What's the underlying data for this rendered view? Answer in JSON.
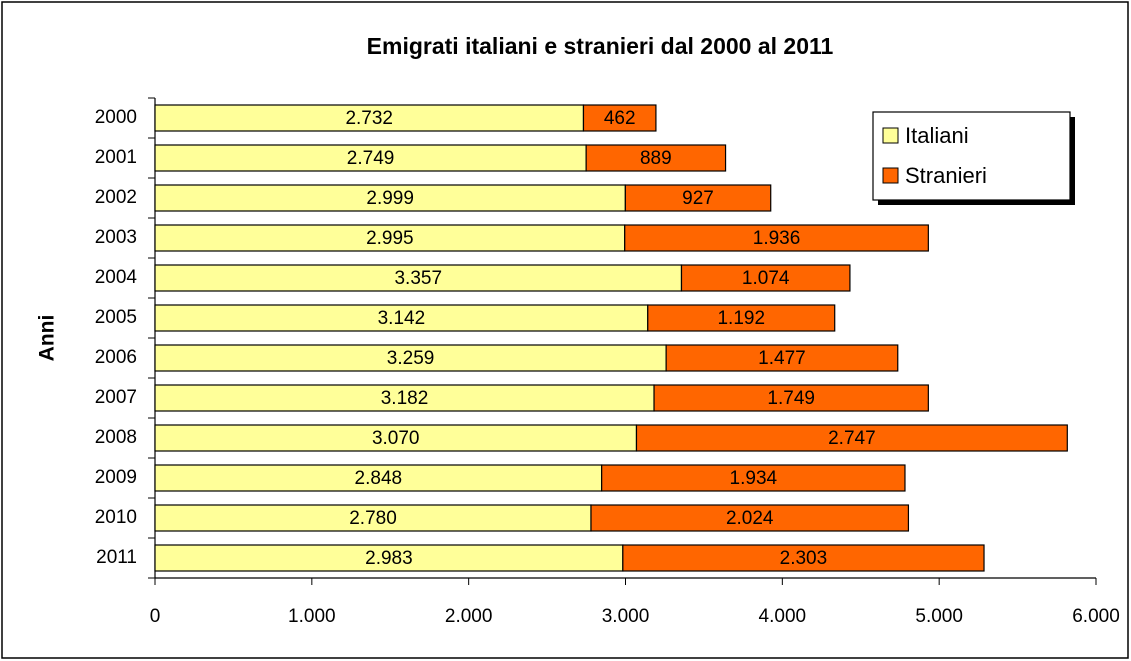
{
  "chart_data": {
    "type": "bar",
    "orientation": "horizontal",
    "stacked": true,
    "title": "Emigrati italiani e stranieri dal 2000 al 2011",
    "y_label": "Anni",
    "categories": [
      "2000",
      "2001",
      "2002",
      "2003",
      "2004",
      "2005",
      "2006",
      "2007",
      "2008",
      "2009",
      "2010",
      "2011"
    ],
    "series": [
      {
        "name": "Italiani",
        "color": "#ffff99",
        "values": [
          2732,
          2749,
          2999,
          2995,
          3357,
          3142,
          3259,
          3182,
          3070,
          2848,
          2780,
          2983
        ],
        "value_labels": [
          "2.732",
          "2.749",
          "2.999",
          "2.995",
          "3.357",
          "3.142",
          "3.259",
          "3.182",
          "3.070",
          "2.848",
          "2.780",
          "2.983"
        ]
      },
      {
        "name": "Stranieri",
        "color": "#ff6600",
        "values": [
          462,
          889,
          927,
          1936,
          1074,
          1192,
          1477,
          1749,
          2747,
          1934,
          2024,
          2303
        ],
        "value_labels": [
          "462",
          "889",
          "927",
          "1.936",
          "1.074",
          "1.192",
          "1.477",
          "1.749",
          "2.747",
          "1.934",
          "2.024",
          "2.303"
        ]
      }
    ],
    "xlim": [
      0,
      6000
    ],
    "xticks": [
      0,
      {
        "value": 1000,
        "label": "1.000"
      },
      {
        "value": 2000,
        "label": "2.000"
      },
      {
        "value": 3000,
        "label": "3.000"
      },
      {
        "value": 4000,
        "label": "4.000"
      },
      {
        "value": 5000,
        "label": "5.000"
      },
      {
        "value": 6000,
        "label": "6.000"
      }
    ],
    "legend": "upper right"
  }
}
